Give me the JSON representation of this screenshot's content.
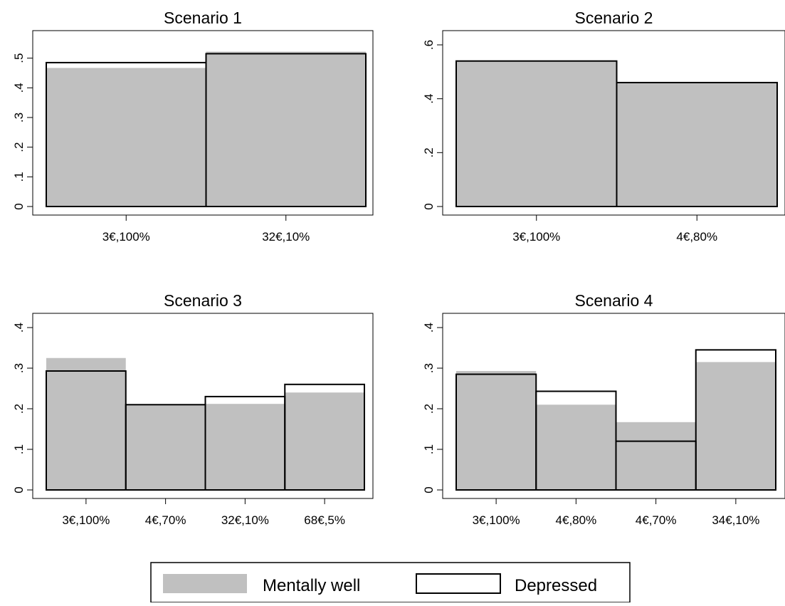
{
  "chart_data": [
    {
      "type": "bar",
      "title": "Scenario 1",
      "categories": [
        "3€,100%",
        "32€,10%"
      ],
      "series": [
        {
          "name": "Mentally well",
          "values": [
            0.467,
            0.522
          ]
        },
        {
          "name": "Depressed",
          "values": [
            0.485,
            0.515
          ]
        }
      ],
      "yticks": [
        0,
        0.1,
        0.2,
        0.3,
        0.4,
        0.5
      ],
      "ytick_labels": [
        "0",
        ".1",
        ".2",
        ".3",
        ".4",
        ".5"
      ],
      "ylim": [
        0,
        0.54
      ]
    },
    {
      "type": "bar",
      "title": "Scenario 2",
      "categories": [
        "3€,100%",
        "4€,80%"
      ],
      "series": [
        {
          "name": "Mentally well",
          "values": [
            0.54,
            0.46
          ]
        },
        {
          "name": "Depressed",
          "values": [
            0.54,
            0.46
          ]
        }
      ],
      "yticks": [
        0,
        0.2,
        0.4,
        0.6
      ],
      "ytick_labels": [
        "0",
        ".2",
        ".4",
        ".6"
      ],
      "ylim": [
        0,
        0.6
      ]
    },
    {
      "type": "bar",
      "title": "Scenario 3",
      "categories": [
        "3€,100%",
        "4€,70%",
        "32€,10%",
        "68€,5%"
      ],
      "series": [
        {
          "name": "Mentally well",
          "values": [
            0.325,
            0.21,
            0.212,
            0.24
          ]
        },
        {
          "name": "Depressed",
          "values": [
            0.293,
            0.21,
            0.23,
            0.26
          ]
        }
      ],
      "yticks": [
        0,
        0.1,
        0.2,
        0.3,
        0.4
      ],
      "ytick_labels": [
        "0",
        ".1",
        ".2",
        ".3",
        ".4"
      ],
      "ylim": [
        0,
        0.4
      ]
    },
    {
      "type": "bar",
      "title": "Scenario 4",
      "categories": [
        "3€,100%",
        "4€,80%",
        "4€,70%",
        "34€,10%"
      ],
      "series": [
        {
          "name": "Mentally well",
          "values": [
            0.293,
            0.21,
            0.167,
            0.315
          ]
        },
        {
          "name": "Depressed",
          "values": [
            0.285,
            0.243,
            0.12,
            0.345
          ]
        }
      ],
      "yticks": [
        0,
        0.1,
        0.2,
        0.3,
        0.4
      ],
      "ytick_labels": [
        "0",
        ".1",
        ".2",
        ".3",
        ".4"
      ],
      "ylim": [
        0,
        0.4
      ]
    }
  ],
  "legend": {
    "items": [
      {
        "label": "Mentally well",
        "style": "filled",
        "color": "#c0c0c0"
      },
      {
        "label": "Depressed",
        "style": "outline",
        "color": "#000000"
      }
    ]
  },
  "colors": {
    "fill": "#c0c0c0",
    "outline": "#000000"
  }
}
